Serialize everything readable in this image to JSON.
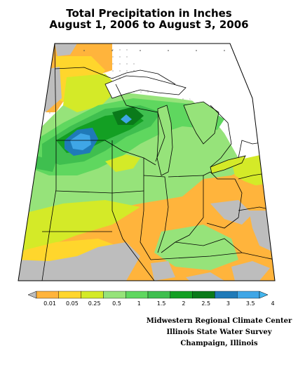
{
  "title_line1": "Total Precipitation in Inches",
  "title_line2": "August 1, 2006 to August 3, 2006",
  "legend": {
    "labels": [
      "0.01",
      "0.05",
      "0.25",
      "0.5",
      "1",
      "1.5",
      "2",
      "2.5",
      "3",
      "3.5",
      "4"
    ],
    "colors": [
      "#bdbdbd",
      "#ffb43c",
      "#ffd62c",
      "#d4ea28",
      "#96e37a",
      "#5fd75f",
      "#3fbf4f",
      "#139f23",
      "#0a7a1a",
      "#1f7ab8",
      "#3fa6e6",
      "#43b6ef"
    ]
  },
  "credits": {
    "line1": "Midwestern Regional Climate Center",
    "line2": "Illinois State Water Survey",
    "line3": "Champaign, Illinois"
  },
  "colors": {
    "no_data": "#bdbdbd",
    "border": "#000000",
    "lake": "#ffffff",
    "graticule": "#000000"
  }
}
